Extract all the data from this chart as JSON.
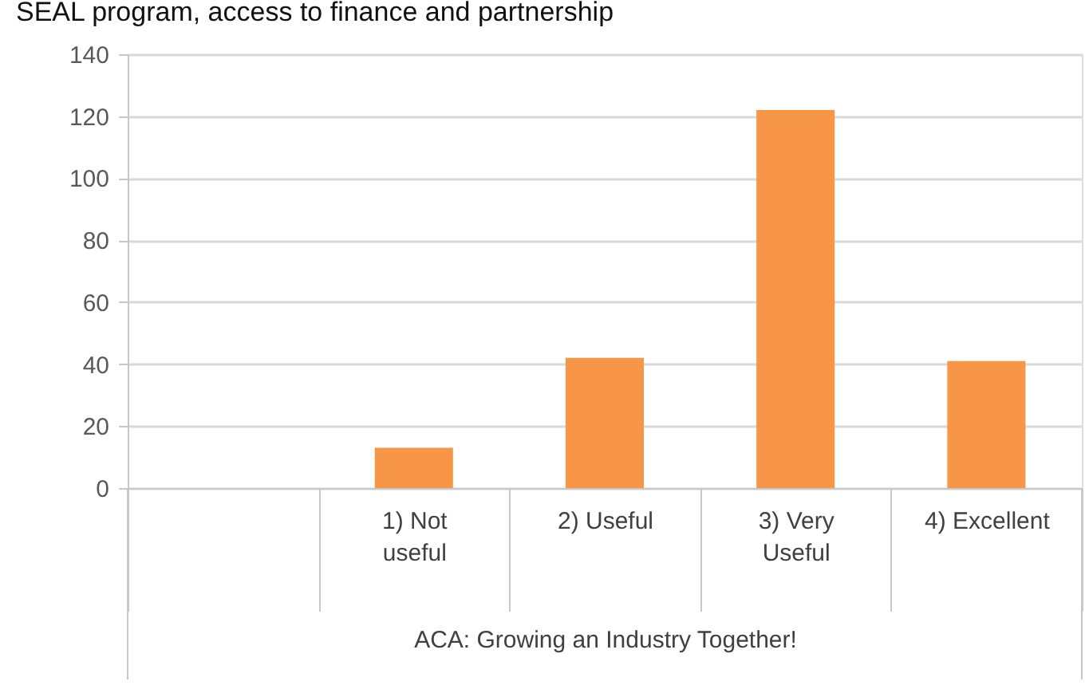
{
  "chart_data": {
    "type": "bar",
    "title": "SEAL program, access to finance and partnership",
    "categories": [
      null,
      "1) Not useful",
      "2) Useful",
      "3) Very Useful",
      "4) Excellent"
    ],
    "values": [
      null,
      13,
      42,
      122,
      41
    ],
    "color": "#f79646",
    "xlabel": "ACA: Growing an Industry Together!",
    "ylim": [
      0,
      140
    ],
    "yticks": [
      0,
      20,
      40,
      60,
      80,
      100,
      120,
      140
    ],
    "grid": "y"
  }
}
